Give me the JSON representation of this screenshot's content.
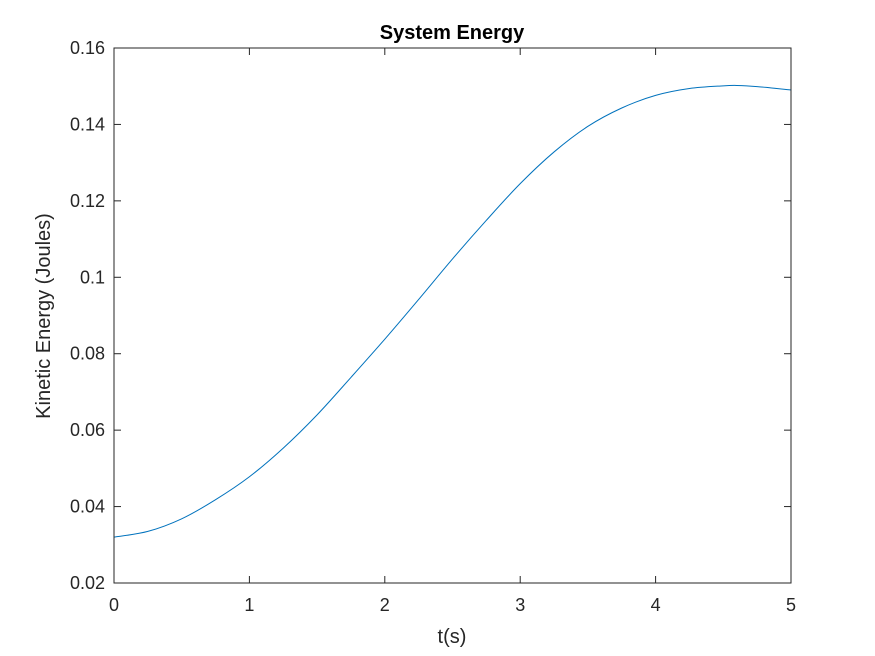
{
  "chart_data": {
    "type": "line",
    "title": "System Energy",
    "xlabel": "t(s)",
    "ylabel": "Kinetic Energy (Joules)",
    "xlim": [
      0,
      5
    ],
    "ylim": [
      0.02,
      0.16
    ],
    "xticks": [
      0,
      1,
      2,
      3,
      4,
      5
    ],
    "xtick_labels": [
      "0",
      "1",
      "2",
      "3",
      "4",
      "5"
    ],
    "yticks": [
      0.02,
      0.04,
      0.06,
      0.08,
      0.1,
      0.12,
      0.14,
      0.16
    ],
    "ytick_labels": [
      "0.02",
      "0.04",
      "0.06",
      "0.08",
      "0.1",
      "0.12",
      "0.14",
      "0.16"
    ],
    "grid": false,
    "legend": "none",
    "series": [
      {
        "color": "#0072BD",
        "x": [
          0,
          0.25,
          0.5,
          0.75,
          1.0,
          1.25,
          1.5,
          1.75,
          2.0,
          2.25,
          2.5,
          2.75,
          3.0,
          3.25,
          3.5,
          3.75,
          4.0,
          4.25,
          4.5,
          4.6,
          4.75,
          5.0
        ],
        "y": [
          0.032,
          0.0335,
          0.0368,
          0.0418,
          0.0478,
          0.0553,
          0.064,
          0.0738,
          0.0838,
          0.0942,
          0.1048,
          0.1149,
          0.1245,
          0.1328,
          0.1395,
          0.1443,
          0.1476,
          0.1494,
          0.1501,
          0.1502,
          0.1499,
          0.149
        ]
      }
    ]
  }
}
